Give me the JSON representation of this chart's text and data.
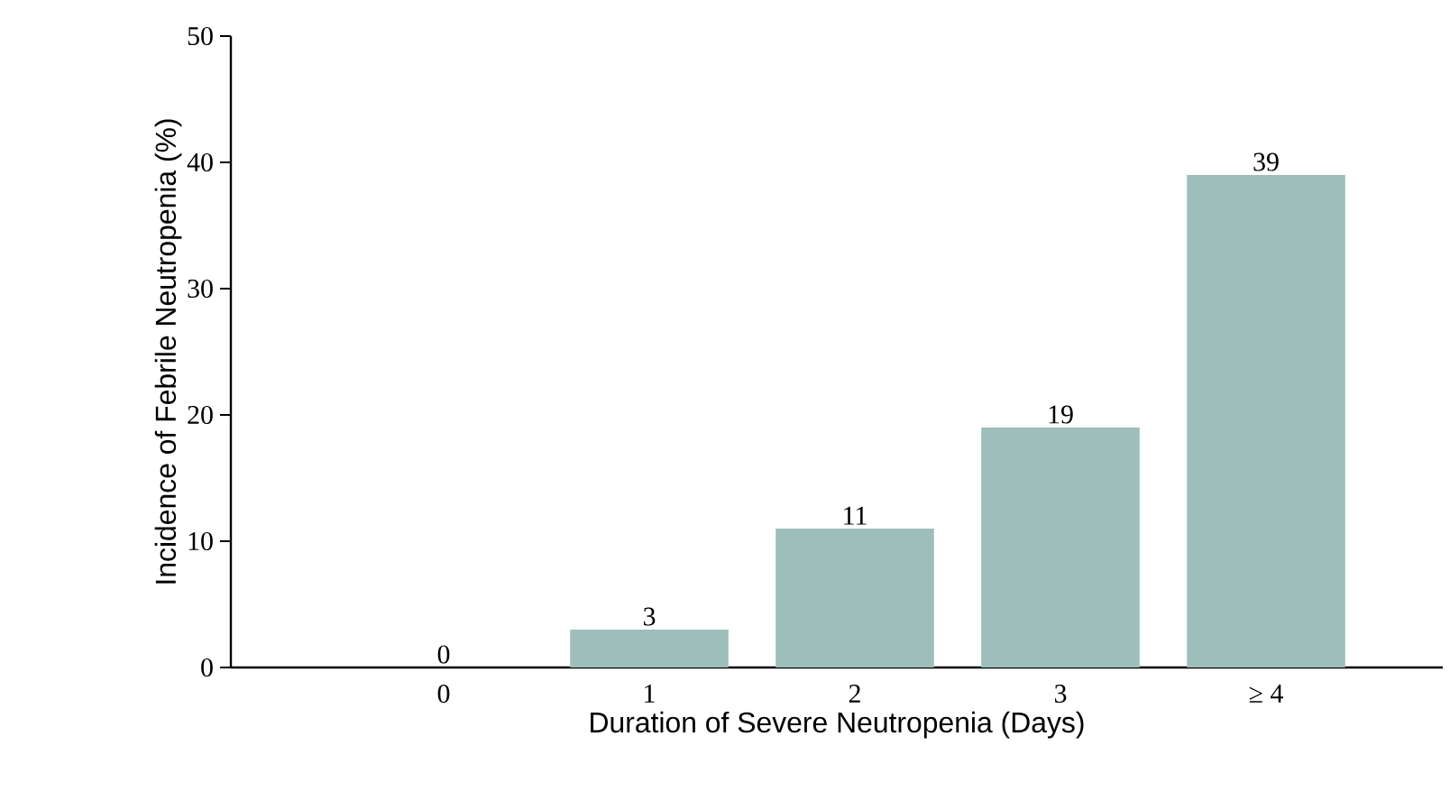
{
  "chart_data": {
    "type": "bar",
    "xlabel": "Duration of Severe Neutropenia (Days)",
    "ylabel": "Incidence of Febrile Neutropenia (%)",
    "categories": [
      "0",
      "1",
      "2",
      "3",
      "≥ 4"
    ],
    "values": [
      0,
      3,
      11,
      19,
      39
    ],
    "color": "#9dbebb",
    "data_labels": true,
    "ylim": [
      0,
      50
    ],
    "yticks": [
      0,
      10,
      20,
      30,
      40,
      50
    ],
    "grid": false
  }
}
